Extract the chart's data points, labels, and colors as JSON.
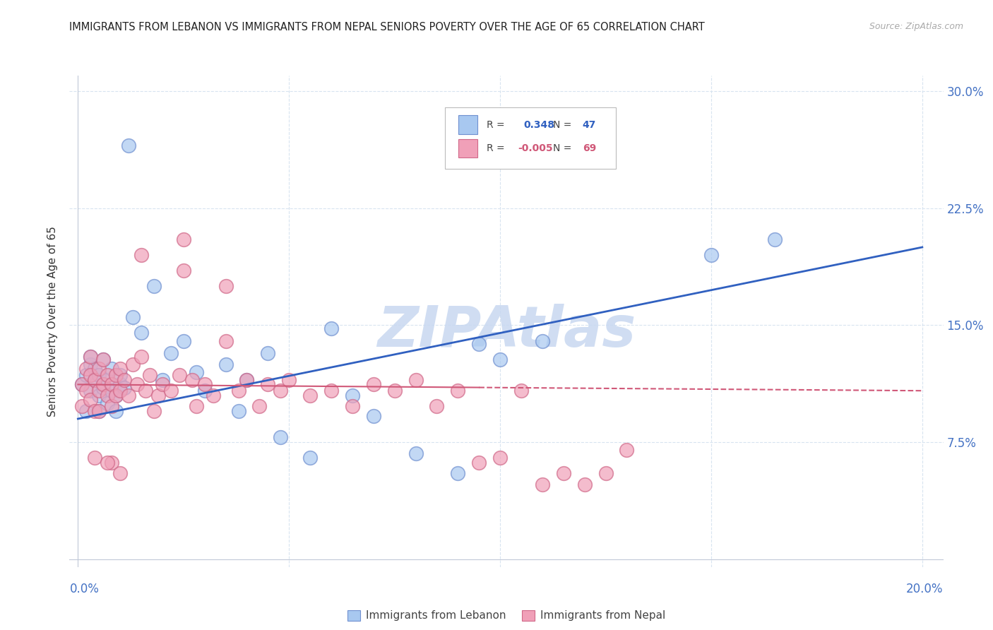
{
  "title": "IMMIGRANTS FROM LEBANON VS IMMIGRANTS FROM NEPAL SENIORS POVERTY OVER THE AGE OF 65 CORRELATION CHART",
  "source": "Source: ZipAtlas.com",
  "ylabel": "Seniors Poverty Over the Age of 65",
  "legend_label_blue": "Immigrants from Lebanon",
  "legend_label_pink": "Immigrants from Nepal",
  "R_blue": 0.348,
  "N_blue": 47,
  "R_pink": -0.005,
  "N_pink": 69,
  "x_ticks": [
    0.0,
    0.05,
    0.1,
    0.15,
    0.2
  ],
  "x_tick_labels_bottom": [
    "0.0%",
    "",
    "",
    "",
    "20.0%"
  ],
  "y_ticks": [
    0.0,
    0.075,
    0.15,
    0.225,
    0.3
  ],
  "y_tick_labels_right": [
    "",
    "7.5%",
    "15.0%",
    "22.5%",
    "30.0%"
  ],
  "xlim": [
    -0.002,
    0.205
  ],
  "ylim": [
    -0.005,
    0.31
  ],
  "blue_scatter_x": [
    0.001,
    0.002,
    0.002,
    0.003,
    0.003,
    0.003,
    0.004,
    0.004,
    0.005,
    0.005,
    0.005,
    0.006,
    0.006,
    0.007,
    0.007,
    0.008,
    0.008,
    0.009,
    0.009,
    0.01,
    0.01,
    0.011,
    0.012,
    0.013,
    0.015,
    0.018,
    0.02,
    0.022,
    0.025,
    0.028,
    0.03,
    0.035,
    0.038,
    0.04,
    0.045,
    0.048,
    0.055,
    0.06,
    0.065,
    0.07,
    0.08,
    0.09,
    0.095,
    0.1,
    0.11,
    0.15,
    0.165
  ],
  "blue_scatter_y": [
    0.112,
    0.095,
    0.118,
    0.108,
    0.125,
    0.13,
    0.115,
    0.122,
    0.105,
    0.118,
    0.095,
    0.11,
    0.128,
    0.1,
    0.115,
    0.108,
    0.122,
    0.095,
    0.105,
    0.112,
    0.118,
    0.11,
    0.265,
    0.155,
    0.145,
    0.175,
    0.115,
    0.132,
    0.14,
    0.12,
    0.108,
    0.125,
    0.095,
    0.115,
    0.132,
    0.078,
    0.065,
    0.148,
    0.105,
    0.092,
    0.068,
    0.055,
    0.138,
    0.128,
    0.14,
    0.195,
    0.205
  ],
  "pink_scatter_x": [
    0.001,
    0.001,
    0.002,
    0.002,
    0.003,
    0.003,
    0.003,
    0.004,
    0.004,
    0.005,
    0.005,
    0.005,
    0.006,
    0.006,
    0.007,
    0.007,
    0.008,
    0.008,
    0.009,
    0.009,
    0.01,
    0.01,
    0.011,
    0.012,
    0.013,
    0.014,
    0.015,
    0.016,
    0.017,
    0.018,
    0.019,
    0.02,
    0.022,
    0.024,
    0.025,
    0.027,
    0.028,
    0.03,
    0.032,
    0.035,
    0.038,
    0.04,
    0.043,
    0.045,
    0.048,
    0.05,
    0.055,
    0.06,
    0.065,
    0.07,
    0.075,
    0.08,
    0.085,
    0.09,
    0.095,
    0.1,
    0.105,
    0.11,
    0.115,
    0.12,
    0.125,
    0.13,
    0.035,
    0.015,
    0.025,
    0.008,
    0.004,
    0.007,
    0.01
  ],
  "pink_scatter_y": [
    0.112,
    0.098,
    0.122,
    0.108,
    0.118,
    0.102,
    0.13,
    0.095,
    0.115,
    0.108,
    0.122,
    0.095,
    0.112,
    0.128,
    0.105,
    0.118,
    0.098,
    0.112,
    0.105,
    0.118,
    0.108,
    0.122,
    0.115,
    0.105,
    0.125,
    0.112,
    0.13,
    0.108,
    0.118,
    0.095,
    0.105,
    0.112,
    0.108,
    0.118,
    0.205,
    0.115,
    0.098,
    0.112,
    0.105,
    0.14,
    0.108,
    0.115,
    0.098,
    0.112,
    0.108,
    0.115,
    0.105,
    0.108,
    0.098,
    0.112,
    0.108,
    0.115,
    0.098,
    0.108,
    0.062,
    0.065,
    0.108,
    0.048,
    0.055,
    0.048,
    0.055,
    0.07,
    0.175,
    0.195,
    0.185,
    0.062,
    0.065,
    0.062,
    0.055
  ],
  "blue_color": "#a8c8f0",
  "pink_color": "#f0a0b8",
  "blue_edge_color": "#7090d0",
  "pink_edge_color": "#d06888",
  "blue_line_color": "#3060c0",
  "pink_line_color": "#d05878",
  "watermark_text": "ZIPAtlas",
  "watermark_color": "#c8d8f0",
  "background_color": "#ffffff",
  "grid_color": "#d8e4f0",
  "tick_color": "#4472c4"
}
